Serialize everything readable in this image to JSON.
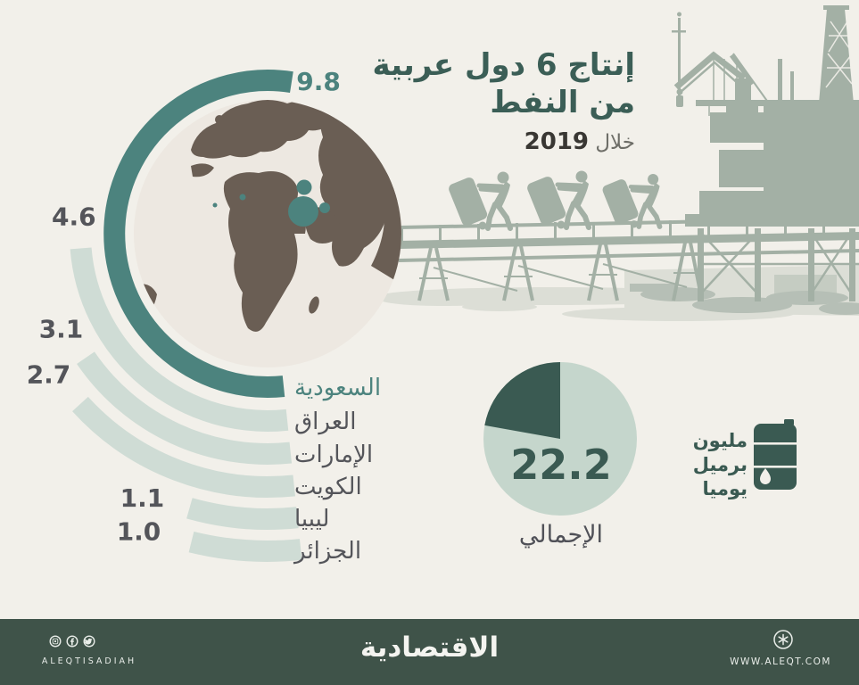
{
  "title": {
    "line1": "إنتاج 6 دول عربية",
    "line2": "من النفط",
    "period_label": "خلال",
    "period_year": "2019"
  },
  "chart_data": {
    "type": "radial-bar",
    "title": "إنتاج 6 دول عربية من النفط خلال 2019",
    "unit_label": "مليون برميل يوميا",
    "max_value": 9.8,
    "highlight_index": 0,
    "series": [
      {
        "name": "السعودية",
        "value": 9.8
      },
      {
        "name": "العراق",
        "value": 4.6
      },
      {
        "name": "الإمارات",
        "value": 3.1
      },
      {
        "name": "الكويت",
        "value": 2.7
      },
      {
        "name": "ليبيا",
        "value": 1.1
      },
      {
        "name": "الجزائر",
        "value": 1.0
      }
    ],
    "total": {
      "value": "22.2",
      "label": "الإجمالي",
      "share_pct": 22.2
    }
  },
  "unit_block": {
    "line1": "مليون",
    "line2": "برميل",
    "line3": "يوميا",
    "icon": "oil-barrel-icon"
  },
  "footer": {
    "brand_arabic": "الاقتصادية",
    "brand_latin": "ALEQTISADIAH",
    "website": "WWW.ALEQT.COM",
    "social_icons": [
      "instagram-icon",
      "facebook-icon",
      "twitter-icon"
    ],
    "logo_icon": "aleqt-mark-icon"
  },
  "colors": {
    "background": "#f2f0ea",
    "accent_teal": "#4c837e",
    "pale_arc": "#cfdcd5",
    "dark_slate": "#3a5a52",
    "dark_gray": "#54555a",
    "pie_body": "#c5d6cc",
    "footer_bg": "#3f5349",
    "silhouette": "#a3b0a5",
    "wash": "#dcded6",
    "globe_land": "#6a5e54",
    "globe_ocean": "#ede8e1"
  }
}
